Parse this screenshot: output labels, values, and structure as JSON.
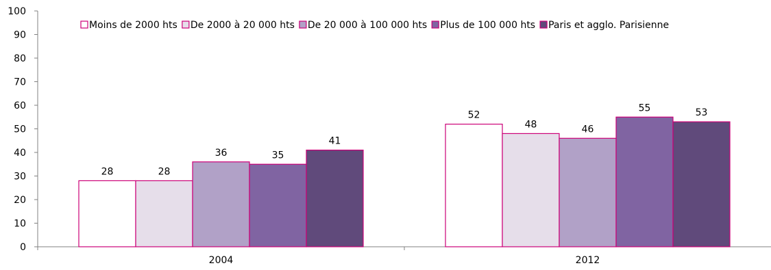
{
  "chart_data": {
    "type": "bar",
    "categories": [
      "2004",
      "2012"
    ],
    "series": [
      {
        "name": "Moins de 2000 hts",
        "values": [
          28,
          52
        ],
        "color": "#FFFFFF"
      },
      {
        "name": "De 2000 à 20 000 hts",
        "values": [
          28,
          48
        ],
        "color": "#E6DEEA"
      },
      {
        "name": "De 20 000 à 100 000 hts",
        "values": [
          36,
          46
        ],
        "color": "#B1A1C7"
      },
      {
        "name": "Plus de 100 000 hts",
        "values": [
          35,
          55
        ],
        "color": "#8064A2"
      },
      {
        "name": "Paris et agglo. Parisienne",
        "values": [
          41,
          53
        ],
        "color": "#604A7B"
      }
    ],
    "bar_border_color": "#CC0077",
    "ylim": [
      0,
      100
    ],
    "yticks": [
      0,
      10,
      20,
      30,
      40,
      50,
      60,
      70,
      80,
      90,
      100
    ],
    "data_labels": true,
    "grid": false,
    "legend_position": "top"
  }
}
